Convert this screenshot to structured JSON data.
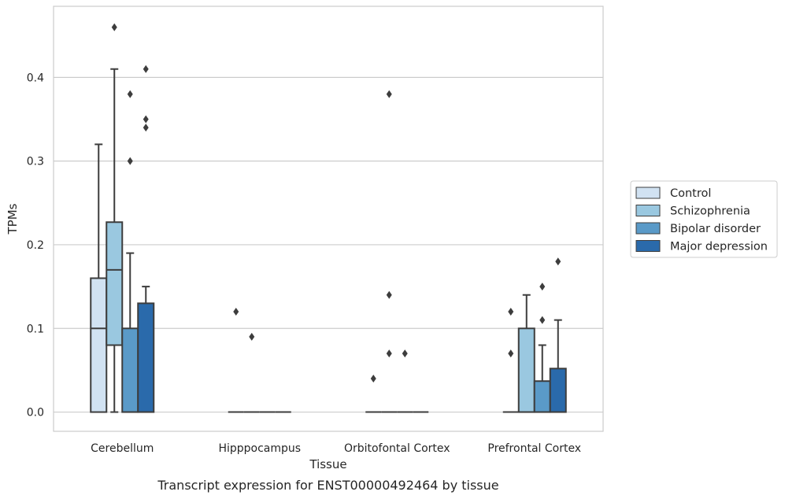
{
  "caption": "Transcript expression for ENST00000492464 by tissue",
  "chart_data": {
    "type": "box",
    "xlabel": "Tissue",
    "ylabel": "TPMs",
    "ylim": [
      -0.023,
      0.485
    ],
    "yticks": [
      "0.0",
      "0.1",
      "0.2",
      "0.3",
      "0.4"
    ],
    "grid": "horizontal",
    "legend_position": "right",
    "categories": [
      "Cerebellum",
      "Hipppocampus",
      "Orbitofontal Cortex",
      "Prefrontal Cortex"
    ],
    "series": [
      {
        "name": "Control",
        "color": "#d1e2f2",
        "boxes": [
          {
            "q1": 0.0,
            "median": 0.1,
            "q3": 0.16,
            "whisker_low": 0.0,
            "whisker_high": 0.32,
            "outliers": []
          },
          {
            "q1": 0.0,
            "median": 0.0,
            "q3": 0.0,
            "whisker_low": 0.0,
            "whisker_high": 0.0,
            "outliers": [
              0.12
            ]
          },
          {
            "q1": 0.0,
            "median": 0.0,
            "q3": 0.0,
            "whisker_low": 0.0,
            "whisker_high": 0.0,
            "outliers": [
              0.04
            ]
          },
          {
            "q1": 0.0,
            "median": 0.0,
            "q3": 0.0,
            "whisker_low": 0.0,
            "whisker_high": 0.0,
            "outliers": [
              0.07,
              0.12
            ]
          }
        ]
      },
      {
        "name": "Schizophrenia",
        "color": "#9ac8e0",
        "boxes": [
          {
            "q1": 0.08,
            "median": 0.17,
            "q3": 0.227,
            "whisker_low": 0.0,
            "whisker_high": 0.41,
            "outliers": [
              0.46
            ]
          },
          {
            "q1": 0.0,
            "median": 0.0,
            "q3": 0.0,
            "whisker_low": 0.0,
            "whisker_high": 0.0,
            "outliers": [
              0.09
            ]
          },
          {
            "q1": 0.0,
            "median": 0.0,
            "q3": 0.0,
            "whisker_low": 0.0,
            "whisker_high": 0.0,
            "outliers": [
              0.07,
              0.14,
              0.38
            ]
          },
          {
            "q1": 0.0,
            "median": 0.0,
            "q3": 0.1,
            "whisker_low": 0.0,
            "whisker_high": 0.14,
            "outliers": []
          }
        ]
      },
      {
        "name": "Bipolar disorder",
        "color": "#5a9ac8",
        "boxes": [
          {
            "q1": 0.0,
            "median": 0.0,
            "q3": 0.1,
            "whisker_low": 0.0,
            "whisker_high": 0.19,
            "outliers": [
              0.3,
              0.38
            ]
          },
          {
            "q1": 0.0,
            "median": 0.0,
            "q3": 0.0,
            "whisker_low": 0.0,
            "whisker_high": 0.0,
            "outliers": []
          },
          {
            "q1": 0.0,
            "median": 0.0,
            "q3": 0.0,
            "whisker_low": 0.0,
            "whisker_high": 0.0,
            "outliers": [
              0.07
            ]
          },
          {
            "q1": 0.0,
            "median": 0.0,
            "q3": 0.037,
            "whisker_low": 0.0,
            "whisker_high": 0.08,
            "outliers": [
              0.11,
              0.15
            ]
          }
        ]
      },
      {
        "name": "Major depression",
        "color": "#2a6aab",
        "boxes": [
          {
            "q1": 0.0,
            "median": 0.0,
            "q3": 0.13,
            "whisker_low": 0.0,
            "whisker_high": 0.15,
            "outliers": [
              0.34,
              0.35,
              0.41
            ]
          },
          {
            "q1": 0.0,
            "median": 0.0,
            "q3": 0.0,
            "whisker_low": 0.0,
            "whisker_high": 0.0,
            "outliers": []
          },
          {
            "q1": 0.0,
            "median": 0.0,
            "q3": 0.0,
            "whisker_low": 0.0,
            "whisker_high": 0.0,
            "outliers": []
          },
          {
            "q1": 0.0,
            "median": 0.0,
            "q3": 0.052,
            "whisker_low": 0.0,
            "whisker_high": 0.11,
            "outliers": [
              0.18
            ]
          }
        ]
      }
    ]
  }
}
